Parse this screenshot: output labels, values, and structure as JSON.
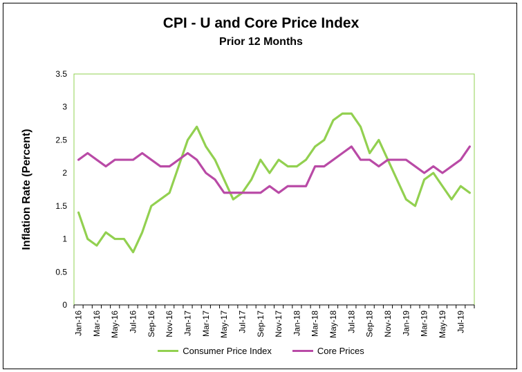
{
  "chart_data": {
    "type": "line",
    "title": "CPI - U and Core Price Index",
    "subtitle": "Prior 12 Months",
    "ylabel": "Inflation Rate (Percent)",
    "xlabel": "",
    "ylim": [
      0,
      3.5
    ],
    "yticks": [
      "0",
      "0.5",
      "1",
      "1.5",
      "2",
      "2.5",
      "3",
      "3.5"
    ],
    "x": [
      "Jan-16",
      "Feb-16",
      "Mar-16",
      "Apr-16",
      "May-16",
      "Jun-16",
      "Jul-16",
      "Aug-16",
      "Sep-16",
      "Oct-16",
      "Nov-16",
      "Dec-16",
      "Jan-17",
      "Feb-17",
      "Mar-17",
      "Apr-17",
      "May-17",
      "Jun-17",
      "Jul-17",
      "Aug-17",
      "Sep-17",
      "Oct-17",
      "Nov-17",
      "Dec-17",
      "Jan-18",
      "Feb-18",
      "Mar-18",
      "Apr-18",
      "May-18",
      "Jun-18",
      "Jul-18",
      "Aug-18",
      "Sep-18",
      "Oct-18",
      "Nov-18",
      "Dec-18",
      "Jan-19",
      "Feb-19",
      "Mar-19",
      "Apr-19",
      "May-19",
      "Jun-19",
      "Jul-19",
      "Aug-19"
    ],
    "xtick_labels": [
      "Jan-16",
      "Mar-16",
      "May-16",
      "Jul-16",
      "Sep-16",
      "Nov-16",
      "Jan-17",
      "Mar-17",
      "May-17",
      "Jul-17",
      "Sep-17",
      "Nov-17",
      "Jan-18",
      "Mar-18",
      "May-18",
      "Jul-18",
      "Sep-18",
      "Nov-18",
      "Jan-19",
      "Mar-19",
      "May-19",
      "Jul-19"
    ],
    "series": [
      {
        "name": "Consumer Price Index",
        "color": "#92D050",
        "values": [
          1.4,
          1.0,
          0.9,
          1.1,
          1.0,
          1.0,
          0.8,
          1.1,
          1.5,
          1.6,
          1.7,
          2.1,
          2.5,
          2.7,
          2.4,
          2.2,
          1.9,
          1.6,
          1.7,
          1.9,
          2.2,
          2.0,
          2.2,
          2.1,
          2.1,
          2.2,
          2.4,
          2.5,
          2.8,
          2.9,
          2.9,
          2.7,
          2.3,
          2.5,
          2.2,
          1.9,
          1.6,
          1.5,
          1.9,
          2.0,
          1.8,
          1.6,
          1.8,
          1.7
        ]
      },
      {
        "name": "Core Prices",
        "color": "#B94AA6",
        "values": [
          2.2,
          2.3,
          2.2,
          2.1,
          2.2,
          2.2,
          2.2,
          2.3,
          2.2,
          2.1,
          2.1,
          2.2,
          2.3,
          2.2,
          2.0,
          1.9,
          1.7,
          1.7,
          1.7,
          1.7,
          1.7,
          1.8,
          1.7,
          1.8,
          1.8,
          1.8,
          2.1,
          2.1,
          2.2,
          2.3,
          2.4,
          2.2,
          2.2,
          2.1,
          2.2,
          2.2,
          2.2,
          2.1,
          2.0,
          2.1,
          2.0,
          2.1,
          2.2,
          2.4
        ]
      }
    ],
    "grid": false,
    "legend": "bottom",
    "plot_border_color": "#92D050"
  }
}
